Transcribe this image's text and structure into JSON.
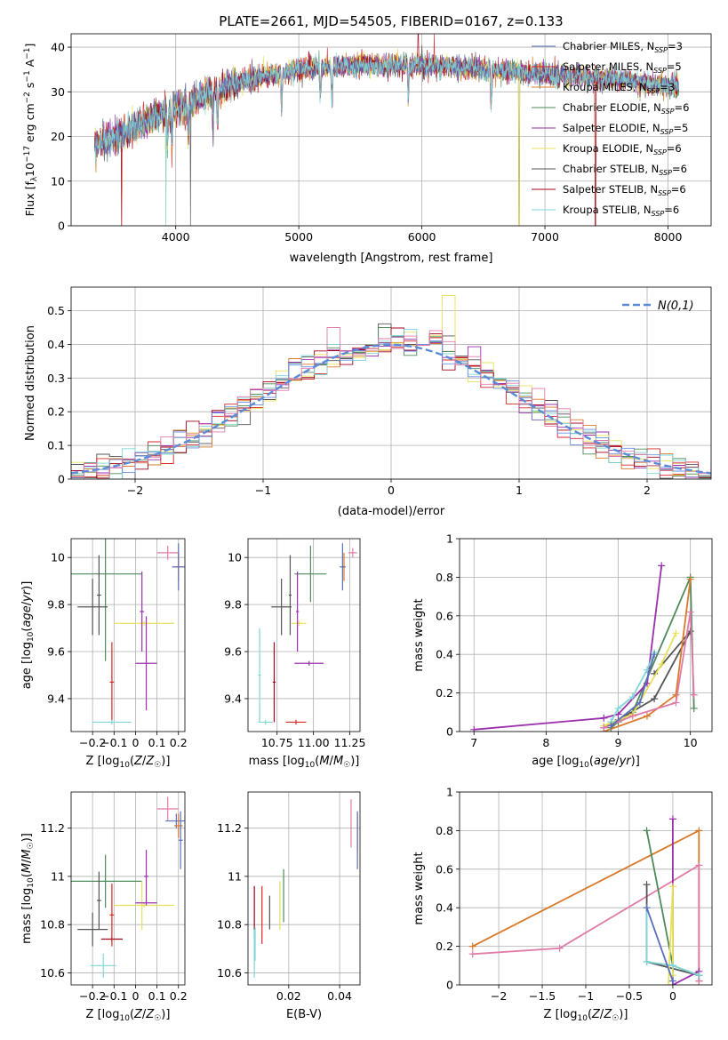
{
  "title": "PLATE=2661, MJD=54505, FIBERID=0167, z=0.133",
  "colors": [
    "#5b6fb8",
    "#d62728",
    "#d97a2b",
    "#4e8a5a",
    "#9b2fae",
    "#e6e05a",
    "#555555",
    "#a00018",
    "#7fd6d6",
    "#e07ba8",
    "#6a8fe0"
  ],
  "chart_data": [
    {
      "id": "spectrum",
      "type": "line",
      "xlabel": "wavelength [Angstrom, rest frame]",
      "ylabel": "Flux [f_λ10^-17 erg cm^-2 s^-1 A^-1]",
      "xlim": [
        3150,
        8350
      ],
      "ylim": [
        0,
        43
      ],
      "xticks": [
        4000,
        5000,
        6000,
        7000,
        8000
      ],
      "yticks": [
        0,
        10,
        20,
        30,
        40
      ],
      "legend": "top-right",
      "legend_entries": [
        "Chabrier MILES, N_SSP=3",
        "Salpeter MILES, N_SSP=5",
        "Kroupa MILES, N_SSP=3",
        "Chabrier ELODIE, N_SSP=6",
        "Salpeter ELODIE, N_SSP=5",
        "Kroupa ELODIE, N_SSP=6",
        "Chabrier STELIB, N_SSP=6",
        "Salpeter STELIB, N_SSP=6",
        "Kroupa STELIB, N_SSP=6"
      ],
      "data_range": [
        3340,
        8090
      ],
      "continuum": [
        [
          3340,
          18
        ],
        [
          3600,
          21
        ],
        [
          3800,
          24
        ],
        [
          4000,
          26
        ],
        [
          4200,
          29
        ],
        [
          4500,
          32
        ],
        [
          5000,
          35
        ],
        [
          5500,
          36
        ],
        [
          6000,
          36
        ],
        [
          6500,
          35
        ],
        [
          7000,
          34
        ],
        [
          7500,
          33
        ],
        [
          8090,
          31
        ]
      ]
    },
    {
      "id": "residuals",
      "type": "histogram",
      "xlabel": "(data-model)/error",
      "ylabel": "Normed distribution",
      "xlim": [
        -2.5,
        2.5
      ],
      "ylim": [
        0,
        0.57
      ],
      "xticks": [
        -2,
        -1,
        0,
        1,
        2
      ],
      "yticks": [
        0.0,
        0.1,
        0.2,
        0.3,
        0.4,
        0.5
      ],
      "legend": "top-right",
      "normal_label": "N(0,1)",
      "bin_width": 0.1
    },
    {
      "id": "age_vs_Z",
      "type": "scatter",
      "xlabel": "Z [log10(Z/Z☉)]",
      "ylabel": "age  [log10(age/yr)]",
      "xlim": [
        -0.3,
        0.23
      ],
      "ylim": [
        9.26,
        10.08
      ],
      "xticks": [
        -0.2,
        -0.1,
        0.0,
        0.1,
        0.2
      ],
      "yticks": [
        9.4,
        9.6,
        9.8,
        10.0
      ],
      "points": [
        {
          "c": 3,
          "x": -0.14,
          "y": 9.93,
          "dx": 0.17,
          "dy": 0.37
        },
        {
          "c": 6,
          "x": -0.2,
          "y": 9.79,
          "dx": 0.07,
          "dy": 0.12
        },
        {
          "c": 6,
          "x": -0.17,
          "y": 9.84,
          "dx": 0.01,
          "dy": 0.17
        },
        {
          "c": 1,
          "x": -0.11,
          "y": 9.47,
          "dx": 0.01,
          "dy": 0.17
        },
        {
          "c": 8,
          "x": -0.11,
          "y": 9.3,
          "dx": 0.09,
          "dy": 0.01
        },
        {
          "c": 5,
          "x": 0.04,
          "y": 9.72,
          "dx": 0.14,
          "dy": 0.01
        },
        {
          "c": 4,
          "x": 0.05,
          "y": 9.55,
          "dx": 0.05,
          "dy": 0.2
        },
        {
          "c": 4,
          "x": 0.03,
          "y": 9.77,
          "dx": 0.01,
          "dy": 0.17
        },
        {
          "c": 9,
          "x": 0.15,
          "y": 10.02,
          "dx": 0.05,
          "dy": 0.03
        },
        {
          "c": 2,
          "x": 0.2,
          "y": 9.96,
          "dx": 0.02,
          "dy": 0.06
        },
        {
          "c": 0,
          "x": 0.2,
          "y": 9.96,
          "dx": 0.03,
          "dy": 0.1
        }
      ]
    },
    {
      "id": "age_vs_mass",
      "type": "scatter",
      "xlabel": "mass [log10(M/M☉)]",
      "ylabel": "",
      "xlim": [
        10.55,
        11.32
      ],
      "ylim": [
        9.26,
        10.08
      ],
      "xticks": [
        10.75,
        11.0,
        11.25
      ],
      "xticklabels": [
        "10.75",
        "11.00",
        "11.25"
      ],
      "yticks": [
        9.4,
        9.6,
        9.8,
        10.0
      ],
      "points": [
        {
          "c": 3,
          "x": 10.98,
          "y": 9.93,
          "dx": 0.11,
          "dy": 0.12
        },
        {
          "c": 6,
          "x": 10.78,
          "y": 9.79,
          "dx": 0.07,
          "dy": 0.12
        },
        {
          "c": 6,
          "x": 10.84,
          "y": 9.84,
          "dx": 0.01,
          "dy": 0.17
        },
        {
          "c": 7,
          "x": 10.73,
          "y": 9.47,
          "dx": 0.01,
          "dy": 0.17
        },
        {
          "c": 1,
          "x": 10.88,
          "y": 9.3,
          "dx": 0.07,
          "dy": 0.01
        },
        {
          "c": 8,
          "x": 10.63,
          "y": 9.5,
          "dx": 0.01,
          "dy": 0.2
        },
        {
          "c": 8,
          "x": 10.67,
          "y": 9.3,
          "dx": 0.05,
          "dy": 0.01
        },
        {
          "c": 5,
          "x": 10.9,
          "y": 9.72,
          "dx": 0.05,
          "dy": 0.01
        },
        {
          "c": 4,
          "x": 10.97,
          "y": 9.55,
          "dx": 0.1,
          "dy": 0.01
        },
        {
          "c": 4,
          "x": 10.89,
          "y": 9.77,
          "dx": 0.01,
          "dy": 0.17
        },
        {
          "c": 9,
          "x": 11.27,
          "y": 10.02,
          "dx": 0.03,
          "dy": 0.02
        },
        {
          "c": 2,
          "x": 11.21,
          "y": 9.96,
          "dx": 0.01,
          "dy": 0.06
        },
        {
          "c": 0,
          "x": 11.2,
          "y": 9.96,
          "dx": 0.02,
          "dy": 0.1
        }
      ]
    },
    {
      "id": "weight_vs_age",
      "type": "line",
      "xlabel": "age  [log10(age/yr)]",
      "ylabel": "mass weight",
      "xlim": [
        6.8,
        10.3
      ],
      "ylim": [
        0,
        1.0
      ],
      "xticks": [
        7,
        8,
        9,
        10
      ],
      "yticks": [
        0.0,
        0.2,
        0.4,
        0.6,
        0.8,
        1.0
      ],
      "series": [
        {
          "c": 3,
          "pts": [
            [
              8.9,
              0.02
            ],
            [
              9.0,
              0.05
            ],
            [
              9.2,
              0.1
            ],
            [
              10.0,
              0.8
            ],
            [
              10.05,
              0.12
            ]
          ]
        },
        {
          "c": 6,
          "pts": [
            [
              8.8,
              0.02
            ],
            [
              9.0,
              0.06
            ],
            [
              9.5,
              0.17
            ],
            [
              10.0,
              0.52
            ],
            [
              9.5,
              0.3
            ]
          ]
        },
        {
          "c": 4,
          "pts": [
            [
              7.0,
              0.01
            ],
            [
              8.8,
              0.07
            ],
            [
              9.0,
              0.09
            ],
            [
              9.4,
              0.25
            ],
            [
              9.6,
              0.86
            ]
          ]
        },
        {
          "c": 5,
          "pts": [
            [
              8.8,
              0.03
            ],
            [
              9.2,
              0.09
            ],
            [
              9.6,
              0.35
            ],
            [
              9.8,
              0.51
            ]
          ]
        },
        {
          "c": 2,
          "pts": [
            [
              8.8,
              0.0
            ],
            [
              9.4,
              0.08
            ],
            [
              9.8,
              0.19
            ],
            [
              10.0,
              0.79
            ]
          ]
        },
        {
          "c": 9,
          "pts": [
            [
              8.8,
              0.02
            ],
            [
              9.2,
              0.08
            ],
            [
              9.8,
              0.15
            ],
            [
              10.0,
              0.62
            ],
            [
              10.05,
              0.19
            ]
          ]
        },
        {
          "c": 8,
          "pts": [
            [
              8.9,
              0.05
            ],
            [
              9.0,
              0.12
            ],
            [
              9.2,
              0.18
            ],
            [
              9.4,
              0.32
            ],
            [
              9.5,
              0.41
            ]
          ]
        },
        {
          "c": 0,
          "pts": [
            [
              8.9,
              0.03
            ],
            [
              9.3,
              0.15
            ],
            [
              9.5,
              0.4
            ]
          ]
        }
      ]
    },
    {
      "id": "mass_vs_Z",
      "type": "scatter",
      "xlabel": "Z [log10(Z/Z☉)]",
      "ylabel": "mass [log10(M/M☉)]",
      "xlim": [
        -0.3,
        0.23
      ],
      "ylim": [
        10.55,
        11.35
      ],
      "xticks": [
        -0.2,
        -0.1,
        0.0,
        0.1,
        0.2
      ],
      "yticks": [
        10.6,
        10.8,
        11.0,
        11.2
      ],
      "points": [
        {
          "c": 3,
          "x": -0.14,
          "y": 10.98,
          "dx": 0.17,
          "dy": 0.11
        },
        {
          "c": 6,
          "x": -0.2,
          "y": 10.78,
          "dx": 0.07,
          "dy": 0.07
        },
        {
          "c": 6,
          "x": -0.17,
          "y": 10.9,
          "dx": 0.01,
          "dy": 0.12
        },
        {
          "c": 7,
          "x": -0.11,
          "y": 10.74,
          "dx": 0.05,
          "dy": 0.01
        },
        {
          "c": 1,
          "x": -0.11,
          "y": 10.84,
          "dx": 0.01,
          "dy": 0.13
        },
        {
          "c": 8,
          "x": -0.15,
          "y": 10.63,
          "dx": 0.06,
          "dy": 0.05
        },
        {
          "c": 5,
          "x": 0.04,
          "y": 10.88,
          "dx": 0.14,
          "dy": 0.01
        },
        {
          "c": 5,
          "x": 0.03,
          "y": 10.88,
          "dx": 0.01,
          "dy": 0.1
        },
        {
          "c": 4,
          "x": 0.05,
          "y": 10.89,
          "dx": 0.05,
          "dy": 0.01
        },
        {
          "c": 4,
          "x": 0.05,
          "y": 11.0,
          "dx": 0.01,
          "dy": 0.11
        },
        {
          "c": 9,
          "x": 0.15,
          "y": 11.28,
          "dx": 0.05,
          "dy": 0.05
        },
        {
          "c": 0,
          "x": 0.19,
          "y": 11.23,
          "dx": 0.05,
          "dy": 0.03
        },
        {
          "c": 2,
          "x": 0.2,
          "y": 11.21,
          "dx": 0.02,
          "dy": 0.05
        },
        {
          "c": 0,
          "x": 0.21,
          "y": 11.15,
          "dx": 0.01,
          "dy": 0.12
        }
      ]
    },
    {
      "id": "mass_vs_ebv",
      "type": "scatter",
      "xlabel": "E(B-V)",
      "ylabel": "",
      "xlim": [
        0.004,
        0.048
      ],
      "ylim": [
        10.55,
        11.35
      ],
      "xticks": [
        0.02,
        0.04
      ],
      "xticklabels": [
        "0.02",
        "0.04"
      ],
      "yticks": [
        10.6,
        10.8,
        11.0,
        11.2
      ],
      "points": [
        {
          "c": 7,
          "x": 0.0065,
          "y": 10.85,
          "dx": 0.0,
          "dy": 0.11
        },
        {
          "c": 8,
          "x": 0.0065,
          "y": 10.68,
          "dx": 0.0,
          "dy": 0.1
        },
        {
          "c": 8,
          "x": 0.0068,
          "y": 10.72,
          "dx": 0.0,
          "dy": 0.07
        },
        {
          "c": 6,
          "x": 0.0125,
          "y": 10.85,
          "dx": 0.0,
          "dy": 0.07
        },
        {
          "c": 5,
          "x": 0.0165,
          "y": 10.88,
          "dx": 0.0,
          "dy": 0.1
        },
        {
          "c": 3,
          "x": 0.018,
          "y": 10.92,
          "dx": 0.0,
          "dy": 0.11
        },
        {
          "c": 1,
          "x": 0.0095,
          "y": 10.84,
          "dx": 0.0,
          "dy": 0.12
        },
        {
          "c": 9,
          "x": 0.0445,
          "y": 11.22,
          "dx": 0.0,
          "dy": 0.1
        },
        {
          "c": 2,
          "x": 0.047,
          "y": 11.18,
          "dx": 0.0,
          "dy": 0.08
        },
        {
          "c": 0,
          "x": 0.047,
          "y": 11.15,
          "dx": 0.0,
          "dy": 0.12
        }
      ]
    },
    {
      "id": "weight_vs_Z",
      "type": "line",
      "xlabel": "Z [log10(Z/Z☉)]",
      "ylabel": "mass weight",
      "xlim": [
        -2.45,
        0.45
      ],
      "ylim": [
        0,
        1.0
      ],
      "xticks": [
        -2.0,
        -1.5,
        -1.0,
        -0.5,
        0.0
      ],
      "yticks": [
        0.0,
        0.2,
        0.4,
        0.6,
        0.8,
        1.0
      ],
      "series": [
        {
          "c": 2,
          "pts": [
            [
              -2.3,
              0.2
            ],
            [
              0.3,
              0.8
            ],
            [
              0.3,
              0.02
            ]
          ]
        },
        {
          "c": 9,
          "pts": [
            [
              -2.3,
              0.16
            ],
            [
              -1.3,
              0.19
            ],
            [
              0.3,
              0.62
            ],
            [
              0.3,
              0.02
            ]
          ]
        },
        {
          "c": 3,
          "pts": [
            [
              -0.3,
              0.8
            ],
            [
              0.0,
              0.1
            ],
            [
              0.3,
              0.05
            ]
          ]
        },
        {
          "c": 6,
          "pts": [
            [
              -0.3,
              0.52
            ],
            [
              -0.3,
              0.12
            ],
            [
              0.3,
              0.05
            ]
          ]
        },
        {
          "c": 4,
          "pts": [
            [
              0.0,
              0.86
            ],
            [
              0.0,
              0.0
            ],
            [
              0.3,
              0.07
            ]
          ]
        },
        {
          "c": 5,
          "pts": [
            [
              -0.05,
              0.0
            ],
            [
              0.0,
              0.51
            ],
            [
              0.0,
              0.05
            ]
          ]
        },
        {
          "c": 8,
          "pts": [
            [
              -0.3,
              0.4
            ],
            [
              -0.3,
              0.12
            ],
            [
              0.0,
              0.1
            ],
            [
              0.3,
              0.05
            ]
          ]
        },
        {
          "c": 0,
          "pts": [
            [
              -0.3,
              0.4
            ],
            [
              0.0,
              0.02
            ]
          ]
        }
      ]
    }
  ]
}
